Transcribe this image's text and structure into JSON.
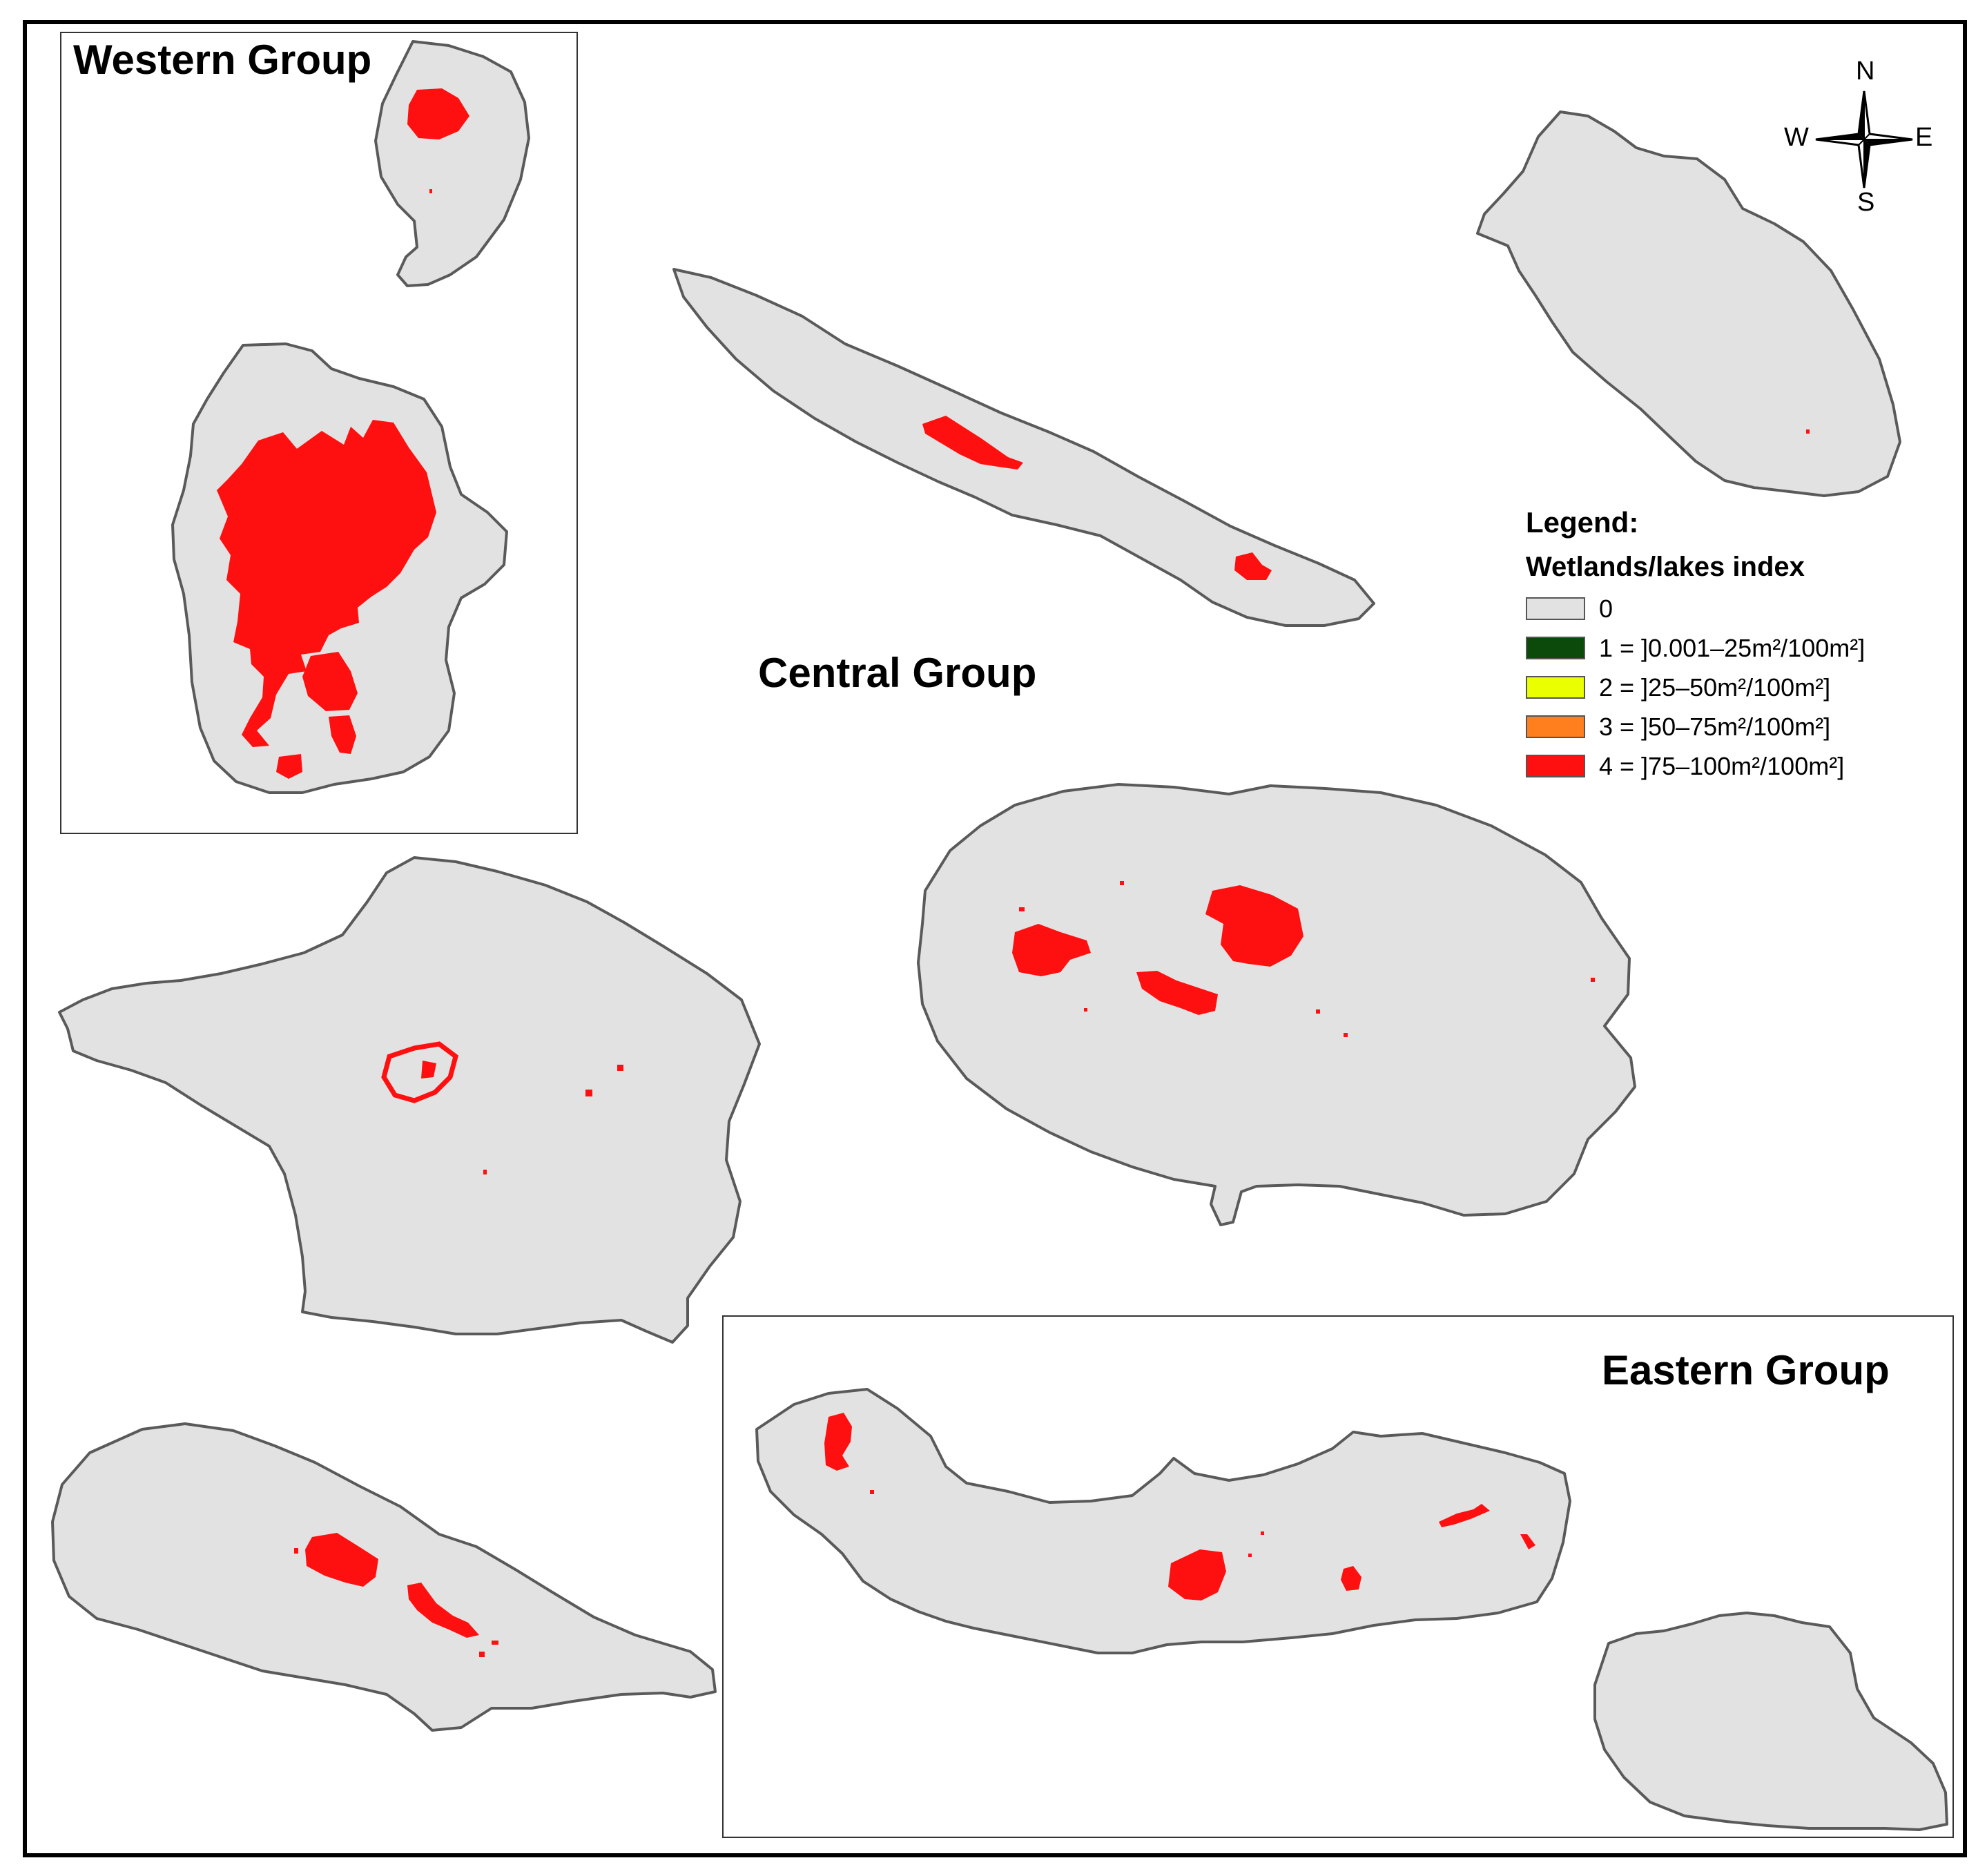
{
  "groups": {
    "western": "Western Group",
    "central": "Central Group",
    "eastern": "Eastern Group"
  },
  "legend": {
    "title": "Legend:",
    "subtitle": "Wetlands/lakes index",
    "items": [
      {
        "label": "0",
        "color": "#e2e2e2"
      },
      {
        "label": "1 = ]0.001–25m²/100m²]",
        "color": "#0b4a0b"
      },
      {
        "label": "2 = ]25–50m²/100m²]",
        "color": "#eaff00"
      },
      {
        "label": "3 = ]50–75m²/100m²]",
        "color": "#ff7f1e"
      },
      {
        "label": "4 = ]75–100m²/100m²]",
        "color": "#ff1010"
      }
    ]
  },
  "compass": {
    "n": "N",
    "s": "S",
    "e": "E",
    "w": "W"
  },
  "colors": {
    "land": "#e2e2e2",
    "coast": "#5a5a5a",
    "wetland": "#ff1010",
    "frame": "#000000"
  }
}
